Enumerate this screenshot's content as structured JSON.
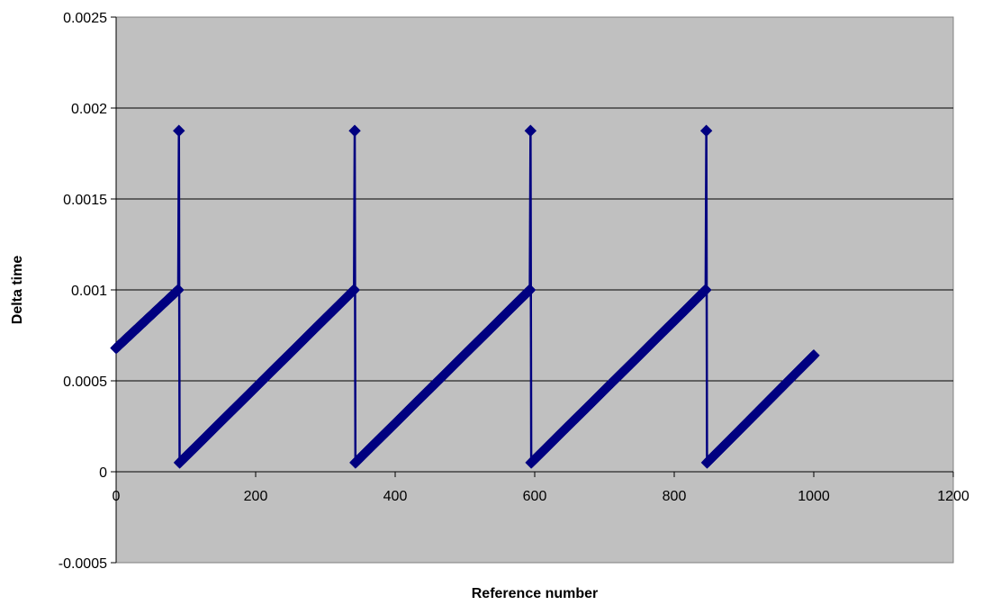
{
  "chart_data": {
    "type": "line",
    "title": "",
    "xlabel": "Reference number",
    "ylabel": "Delta time",
    "xlim": [
      0,
      1200
    ],
    "ylim": [
      -0.0005,
      0.0025
    ],
    "xticks": [
      0,
      200,
      400,
      600,
      800,
      1000,
      1200
    ],
    "yticks": [
      -0.0005,
      0,
      0.0005,
      0.001,
      0.0015,
      0.002,
      0.0025
    ],
    "xtick_labels": [
      "0",
      "200",
      "400",
      "600",
      "800",
      "1000",
      "1200"
    ],
    "ytick_labels": [
      "-0.0005",
      "0",
      "0.0005",
      "0.001",
      "0.0015",
      "0.002",
      "0.0025"
    ],
    "grid": "horizontal",
    "legend": "none",
    "plot_background": "#c0c0c0",
    "series": [
      {
        "color": "#000080",
        "marker": "diamond",
        "x_step": 1,
        "segments": [
          {
            "x_start": 0,
            "x_end": 89,
            "y_start": 0.00068,
            "y_end": 0.001
          },
          {
            "x": 90,
            "y": 0.001875
          },
          {
            "x_start": 91,
            "x_end": 341,
            "y_start": 5e-05,
            "y_end": 0.001
          },
          {
            "x": 342,
            "y": 0.001875
          },
          {
            "x_start": 343,
            "x_end": 593,
            "y_start": 5e-05,
            "y_end": 0.001
          },
          {
            "x": 594,
            "y": 0.001875
          },
          {
            "x_start": 595,
            "x_end": 845,
            "y_start": 5e-05,
            "y_end": 0.001
          },
          {
            "x": 846,
            "y": 0.001875
          },
          {
            "x_start": 847,
            "x_end": 1000,
            "y_start": 5e-05,
            "y_end": 0.00064
          }
        ]
      }
    ]
  }
}
